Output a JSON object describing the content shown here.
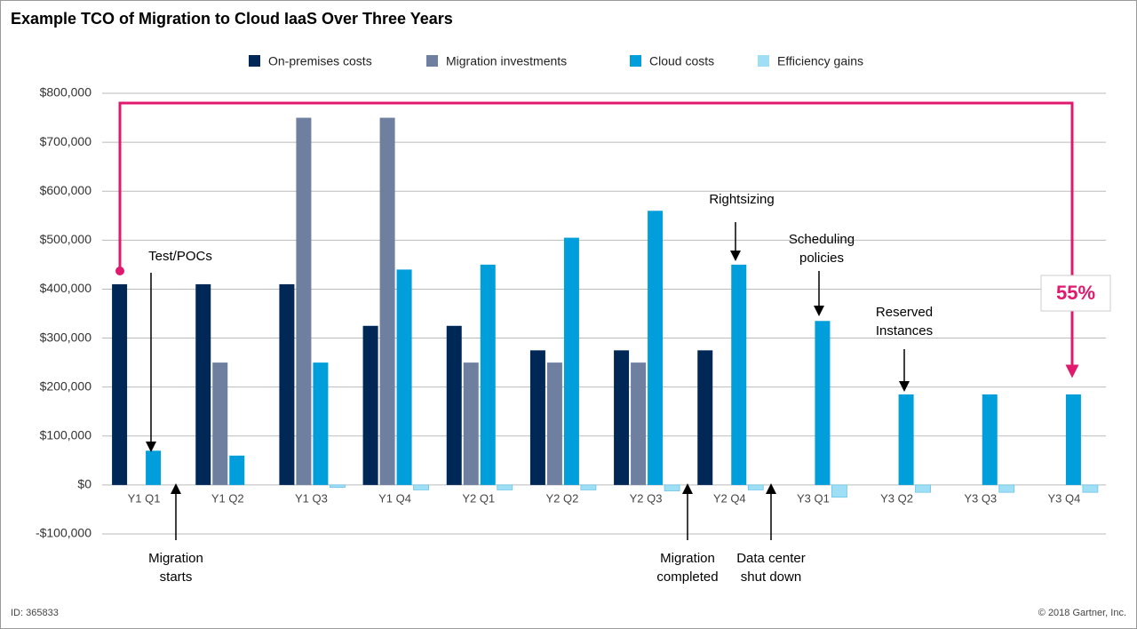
{
  "chart_data": {
    "type": "bar",
    "title": "Example TCO of Migration to Cloud IaaS Over Three Years",
    "categories": [
      "Y1 Q1",
      "Y1 Q2",
      "Y1 Q3",
      "Y1 Q4",
      "Y2 Q1",
      "Y2 Q2",
      "Y2 Q3",
      "Y2 Q4",
      "Y3 Q1",
      "Y3 Q2",
      "Y3 Q3",
      "Y3 Q4"
    ],
    "series": [
      {
        "name": "On-premises costs",
        "color": "#002856",
        "values": [
          410000,
          410000,
          410000,
          325000,
          325000,
          275000,
          275000,
          275000,
          0,
          0,
          0,
          0
        ]
      },
      {
        "name": "Migration investments",
        "color": "#6e7fa0",
        "values": [
          0,
          250000,
          750000,
          750000,
          250000,
          250000,
          250000,
          0,
          0,
          0,
          0,
          0
        ]
      },
      {
        "name": "Cloud costs",
        "color": "#009fdb",
        "values": [
          70000,
          60000,
          250000,
          440000,
          450000,
          505000,
          560000,
          450000,
          335000,
          185000,
          185000,
          185000
        ]
      },
      {
        "name": "Efficiency gains",
        "color": "#9edff5",
        "values": [
          0,
          0,
          -5000,
          -10000,
          -10000,
          -10000,
          -12000,
          -10000,
          -25000,
          -15000,
          -15000,
          -15000
        ]
      }
    ],
    "ylim": [
      -100000,
      800000
    ],
    "yticks": [
      {
        "value": -100000,
        "label": "-$100,000"
      },
      {
        "value": 0,
        "label": "$0"
      },
      {
        "value": 100000,
        "label": "$100,000"
      },
      {
        "value": 200000,
        "label": "$200,000"
      },
      {
        "value": 300000,
        "label": "$300,000"
      },
      {
        "value": 400000,
        "label": "$400,000"
      },
      {
        "value": 500000,
        "label": "$500,000"
      },
      {
        "value": 600000,
        "label": "$600,000"
      },
      {
        "value": 700000,
        "label": "$700,000"
      },
      {
        "value": 800000,
        "label": "$800,000"
      }
    ],
    "grid": true,
    "legend": "top",
    "annotations": [
      {
        "lines": [
          "Test/POCs"
        ]
      },
      {
        "lines": [
          "Migration",
          "starts"
        ]
      },
      {
        "lines": [
          "Rightsizing"
        ]
      },
      {
        "lines": [
          "Scheduling",
          "policies"
        ]
      },
      {
        "lines": [
          "Reserved",
          "Instances"
        ]
      },
      {
        "lines": [
          "Migration",
          "completed"
        ]
      },
      {
        "lines": [
          "Data center",
          "shut down"
        ]
      }
    ],
    "callout": "55%",
    "footer_left": "ID: 365833",
    "footer_right": "© 2018 Gartner, Inc."
  }
}
